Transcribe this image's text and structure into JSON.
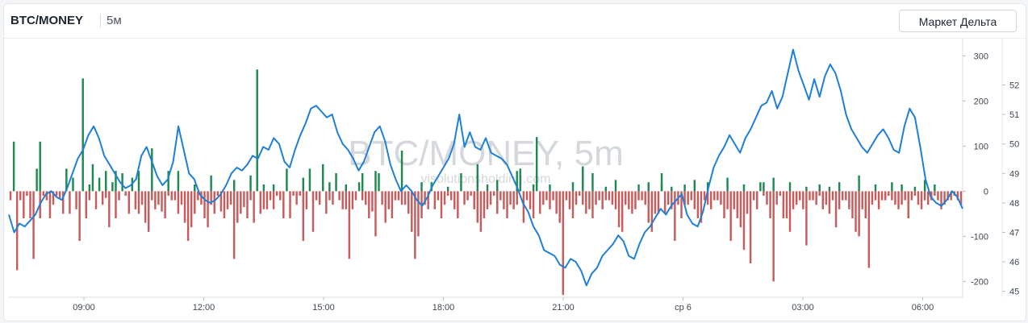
{
  "header": {
    "symbol": "BTC/MONEY",
    "interval": "5м",
    "market_delta_button": "Маркет Дельта"
  },
  "watermark": {
    "main": "BTC/MONEY, 5m",
    "sub": "visolutionsholding.com"
  },
  "colors": {
    "positive_bar": "#1e8a52",
    "negative_bar": "#c85b5b",
    "price_line": "#1e7fd8"
  },
  "chart_data": {
    "type": "bar+line",
    "x_tick_labels": [
      "09:00",
      "12:00",
      "15:00",
      "18:00",
      "21:00",
      "ср 6",
      "03:00",
      "06:00"
    ],
    "delta_axis": {
      "ticks": [
        "300",
        "200",
        "100",
        "0",
        "-100",
        "-200"
      ],
      "ylim": [
        -235,
        340
      ]
    },
    "price_axis": {
      "ticks": [
        "52",
        "51",
        "50",
        "49",
        "48",
        "47",
        "46",
        "45"
      ],
      "ylim": [
        44.8,
        53.6
      ]
    },
    "series": [
      {
        "kind": "bar",
        "values": [
          -20,
          110,
          -175,
          -20,
          -60,
          -10,
          -60,
          -150,
          50,
          -60,
          -10,
          -20,
          -60,
          -30,
          -10,
          -15,
          -50,
          50,
          -50,
          30,
          -40,
          -110,
          250,
          -60,
          -20,
          60,
          -40,
          30,
          -30,
          -15,
          -80,
          20,
          -60,
          -20,
          40,
          -10,
          -50,
          30,
          -40,
          -50,
          -30,
          -70,
          -90,
          -20,
          -40,
          -30,
          -45,
          -60,
          -10,
          -20,
          -20,
          -50,
          -30,
          -70,
          -110,
          -80,
          -50,
          -20,
          -30,
          -60,
          -80,
          -30,
          -50,
          -10,
          -45,
          -60,
          -40,
          -30,
          -150,
          -70,
          -50,
          -35,
          -60,
          -20,
          -70,
          270,
          -50,
          -40,
          -40,
          -20,
          -40,
          -10,
          -20,
          -60,
          50,
          -60,
          -10,
          -30,
          -10,
          -110,
          -40,
          50,
          -90,
          -20,
          -30,
          60,
          -50,
          -20,
          -30,
          40,
          -20,
          -40,
          -40,
          -150,
          -40,
          -20,
          20,
          -20,
          -30,
          -60,
          -45,
          -100,
          40,
          -30,
          -70,
          -40,
          -60,
          -20,
          -20,
          -30,
          -30,
          -50,
          -90,
          -150,
          -100,
          -60,
          -30,
          -40,
          20,
          -40,
          -20,
          -60,
          -30,
          -10,
          -20,
          -40,
          -60,
          40,
          -30,
          -20,
          -10,
          -40,
          -70,
          -90,
          -60,
          -40,
          -30,
          -10,
          -50,
          -20,
          -40,
          -60,
          -30,
          -40,
          -30,
          50,
          -70,
          -20,
          -40,
          -60,
          120,
          -50,
          -30,
          -20,
          -40,
          -20,
          -50,
          -70,
          -230,
          -20,
          -40,
          -60,
          -30,
          -10,
          -30,
          -50,
          -40,
          -60,
          -30,
          -20,
          -40,
          -20,
          -20,
          -30,
          -40,
          -80,
          -90,
          -30,
          -40,
          -50,
          -40,
          -20,
          -20,
          -30,
          -70,
          -90,
          -50,
          -50,
          40,
          -50,
          -30,
          -40,
          -110,
          -30,
          -60,
          -30,
          -30,
          -20,
          -40,
          -60,
          -70,
          -20,
          -30,
          -40,
          -20,
          -20,
          -30,
          -60,
          -40,
          -110,
          -40,
          -60,
          -80,
          -130,
          -50,
          -160,
          -20,
          -40,
          20,
          -10,
          -30,
          -60,
          -200,
          -30,
          -10,
          -60,
          -60,
          -90,
          -40,
          -30,
          -20,
          -40,
          -120,
          -20,
          -20,
          -30,
          -10,
          -40,
          -30,
          -50,
          -20,
          -80,
          -40,
          -20,
          -20,
          -40,
          -60,
          -90,
          -100,
          -40,
          -60,
          -170,
          -30,
          -20,
          -40,
          -20,
          -20,
          -10,
          -20,
          -30,
          -40,
          -30,
          -20,
          -60,
          -20,
          -10,
          -30,
          -40,
          -20,
          -30,
          -20,
          -10,
          -20,
          -40,
          -30,
          -20,
          -20,
          -10,
          -20,
          -30
        ],
        "note_positive_extra": [
          [
            5,
            110
          ],
          [
            14,
            15
          ],
          [
            17,
            45
          ],
          [
            19,
            45
          ],
          [
            23,
            45
          ],
          [
            25,
            95
          ],
          [
            28,
            45
          ],
          [
            30,
            45
          ],
          [
            33,
            15
          ],
          [
            36,
            35
          ],
          [
            40,
            25
          ],
          [
            43,
            35
          ],
          [
            45,
            15
          ],
          [
            47,
            15
          ],
          [
            52,
            30
          ],
          [
            57,
            20
          ],
          [
            60,
            15
          ],
          [
            63,
            40
          ],
          [
            65,
            45
          ],
          [
            70,
            90
          ],
          [
            73,
            20
          ],
          [
            78,
            10
          ],
          [
            83,
            60
          ],
          [
            85,
            15
          ],
          [
            87,
            25
          ],
          [
            90,
            45
          ],
          [
            93,
            15
          ],
          [
            96,
            15
          ],
          [
            100,
            20
          ],
          [
            102,
            55
          ],
          [
            104,
            40
          ],
          [
            106,
            10
          ],
          [
            108,
            25
          ],
          [
            112,
            15
          ],
          [
            114,
            20
          ],
          [
            116,
            15
          ],
          [
            118,
            10
          ],
          [
            120,
            15
          ],
          [
            122,
            25
          ],
          [
            124,
            20
          ],
          [
            128,
            30
          ],
          [
            131,
            15
          ],
          [
            134,
            20
          ],
          [
            136,
            30
          ],
          [
            139,
            20
          ],
          [
            142,
            10
          ],
          [
            144,
            15
          ],
          [
            146,
            10
          ],
          [
            148,
            20
          ],
          [
            151,
            35
          ],
          [
            154,
            15
          ],
          [
            157,
            20
          ],
          [
            159,
            15
          ],
          [
            161,
            10
          ],
          [
            163,
            25
          ],
          [
            165,
            15
          ]
        ]
      },
      {
        "kind": "line",
        "name": "",
        "values": [
          47.6,
          47.0,
          47.3,
          47.2,
          47.4,
          47.6,
          48.0,
          48.3,
          48.4,
          48.2,
          48.1,
          48.5,
          49.0,
          49.5,
          49.8,
          50.3,
          50.6,
          50.2,
          49.6,
          49.3,
          49.0,
          48.7,
          48.5,
          48.6,
          48.8,
          49.6,
          49.9,
          49.4,
          48.9,
          48.6,
          48.8,
          49.4,
          50.6,
          49.8,
          49.0,
          48.8,
          48.3,
          48.1,
          48.0,
          48.1,
          48.3,
          48.6,
          49.0,
          49.2,
          49.1,
          49.3,
          49.6,
          49.5,
          49.9,
          49.8,
          50.2,
          50.0,
          49.4,
          49.2,
          49.8,
          50.3,
          50.7,
          51.2,
          51.3,
          51.1,
          50.9,
          51.0,
          50.4,
          50.0,
          49.8,
          49.5,
          49.1,
          49.4,
          49.9,
          50.4,
          50.6,
          50.1,
          49.3,
          48.8,
          48.4,
          48.6,
          48.4,
          48.1,
          47.9,
          48.2,
          48.6,
          48.9,
          49.2,
          49.5,
          50.0,
          51.0,
          49.9,
          50.4,
          49.9,
          49.8,
          50.2,
          49.7,
          49.6,
          49.5,
          49.3,
          48.9,
          48.5,
          48.0,
          47.7,
          47.2,
          46.9,
          46.4,
          46.3,
          46.2,
          45.9,
          45.8,
          46.1,
          46.0,
          45.7,
          45.2,
          45.6,
          45.8,
          46.2,
          46.4,
          46.6,
          46.9,
          46.7,
          46.2,
          46.1,
          46.6,
          47.0,
          47.2,
          47.5,
          47.8,
          47.6,
          47.9,
          48.1,
          48.3,
          47.6,
          47.3,
          47.2,
          47.7,
          48.5,
          49.2,
          49.6,
          49.9,
          50.3,
          50.0,
          49.7,
          50.2,
          50.5,
          50.9,
          51.3,
          51.4,
          51.8,
          51.2,
          51.6,
          52.4,
          53.2,
          52.5,
          52.0,
          51.5,
          52.2,
          51.6,
          52.3,
          52.7,
          52.4,
          51.8,
          51.0,
          50.5,
          50.2,
          49.9,
          49.7,
          50.0,
          50.3,
          50.5,
          50.2,
          49.8,
          49.7,
          50.6,
          51.2,
          50.9,
          49.9,
          48.8,
          48.2,
          48.0,
          47.9,
          48.1,
          48.4,
          48.2,
          47.8
        ]
      }
    ],
    "grid": true,
    "legend": "none"
  }
}
